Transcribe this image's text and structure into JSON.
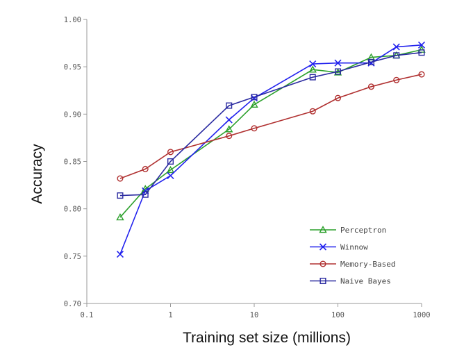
{
  "chart_data": {
    "type": "line",
    "title": "",
    "xlabel": "Training set size (millions)",
    "ylabel": "Accuracy",
    "xscale": "log",
    "xlim": [
      0.1,
      1000
    ],
    "ylim": [
      0.7,
      1.0
    ],
    "x_ticks": [
      0.1,
      1,
      10,
      100,
      1000
    ],
    "x_tick_labels": [
      "0.1",
      "1",
      "10",
      "100",
      "1000"
    ],
    "y_ticks": [
      0.7,
      0.75,
      0.8,
      0.85,
      0.9,
      0.95,
      1.0
    ],
    "y_tick_labels": [
      "0.70",
      "0.75",
      "0.80",
      "0.85",
      "0.90",
      "0.95",
      "1.00"
    ],
    "legend_position": "bottom-right",
    "series": [
      {
        "name": "Perceptron",
        "color": "#2ca02c",
        "marker": "triangle",
        "x": [
          0.25,
          0.5,
          1,
          5,
          10,
          50,
          100,
          250,
          500,
          1000
        ],
        "y": [
          0.791,
          0.821,
          0.841,
          0.884,
          0.91,
          0.947,
          0.944,
          0.96,
          0.962,
          0.968
        ]
      },
      {
        "name": "Winnow",
        "color": "#2222ee",
        "marker": "x",
        "x": [
          0.25,
          0.5,
          1,
          5,
          10,
          50,
          100,
          250,
          500,
          1000
        ],
        "y": [
          0.752,
          0.819,
          0.835,
          0.894,
          0.917,
          0.953,
          0.954,
          0.954,
          0.971,
          0.973
        ]
      },
      {
        "name": "Memory-Based",
        "color": "#b03030",
        "marker": "circle",
        "x": [
          0.25,
          0.5,
          1,
          5,
          10,
          50,
          100,
          250,
          500,
          1000
        ],
        "y": [
          0.832,
          0.842,
          0.86,
          0.877,
          0.885,
          0.903,
          0.917,
          0.929,
          0.936,
          0.942
        ]
      },
      {
        "name": "Naive Bayes",
        "color": "#2a2aa0",
        "marker": "square",
        "x": [
          0.25,
          0.5,
          1,
          5,
          10,
          50,
          100,
          250,
          500,
          1000
        ],
        "y": [
          0.814,
          0.815,
          0.85,
          0.909,
          0.918,
          0.939,
          0.945,
          0.955,
          0.962,
          0.965
        ]
      }
    ]
  }
}
